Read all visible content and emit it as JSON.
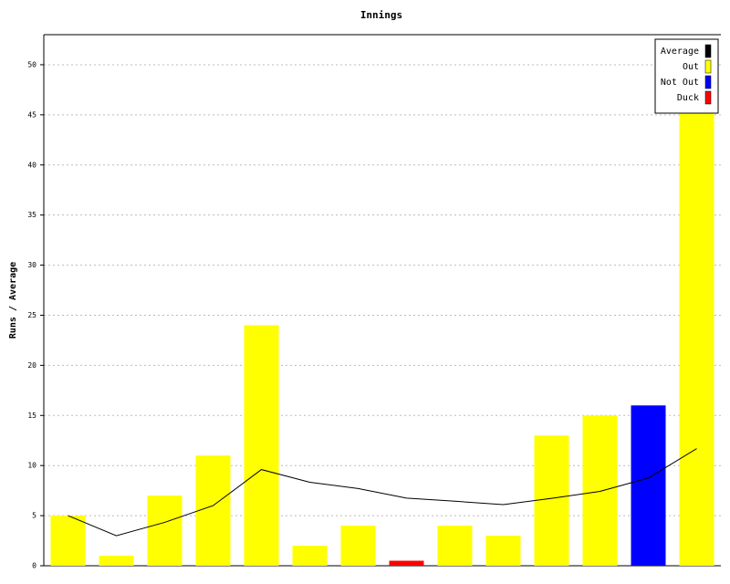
{
  "chart_data": {
    "type": "bar",
    "title": "Innings",
    "ylabel": "Runs / Average",
    "ylim": [
      0,
      53
    ],
    "yticks": [
      0,
      5,
      10,
      15,
      20,
      25,
      30,
      35,
      40,
      45,
      50
    ],
    "grid": true,
    "legend": "top-right",
    "series": [
      {
        "name": "Average",
        "color": "#000000",
        "kind": "line",
        "values": [
          5,
          3,
          4.33,
          6,
          9.6,
          8.33,
          7.71,
          6.75,
          6.44,
          6.1,
          6.73,
          7.42,
          8.75,
          11.69
        ]
      },
      {
        "name": "Out",
        "color": "#ffff00",
        "kind": "bar",
        "values": [
          5,
          1,
          7,
          11,
          24,
          2,
          4,
          null,
          4,
          3,
          13,
          15,
          null,
          47
        ]
      },
      {
        "name": "Not Out",
        "color": "#0000ff",
        "kind": "bar",
        "values": [
          null,
          null,
          null,
          null,
          null,
          null,
          null,
          null,
          null,
          null,
          null,
          null,
          16,
          null
        ]
      },
      {
        "name": "Duck",
        "color": "#ff0000",
        "kind": "bar",
        "values": [
          null,
          null,
          null,
          null,
          null,
          null,
          null,
          0.5,
          null,
          null,
          null,
          null,
          null,
          null
        ]
      }
    ]
  }
}
